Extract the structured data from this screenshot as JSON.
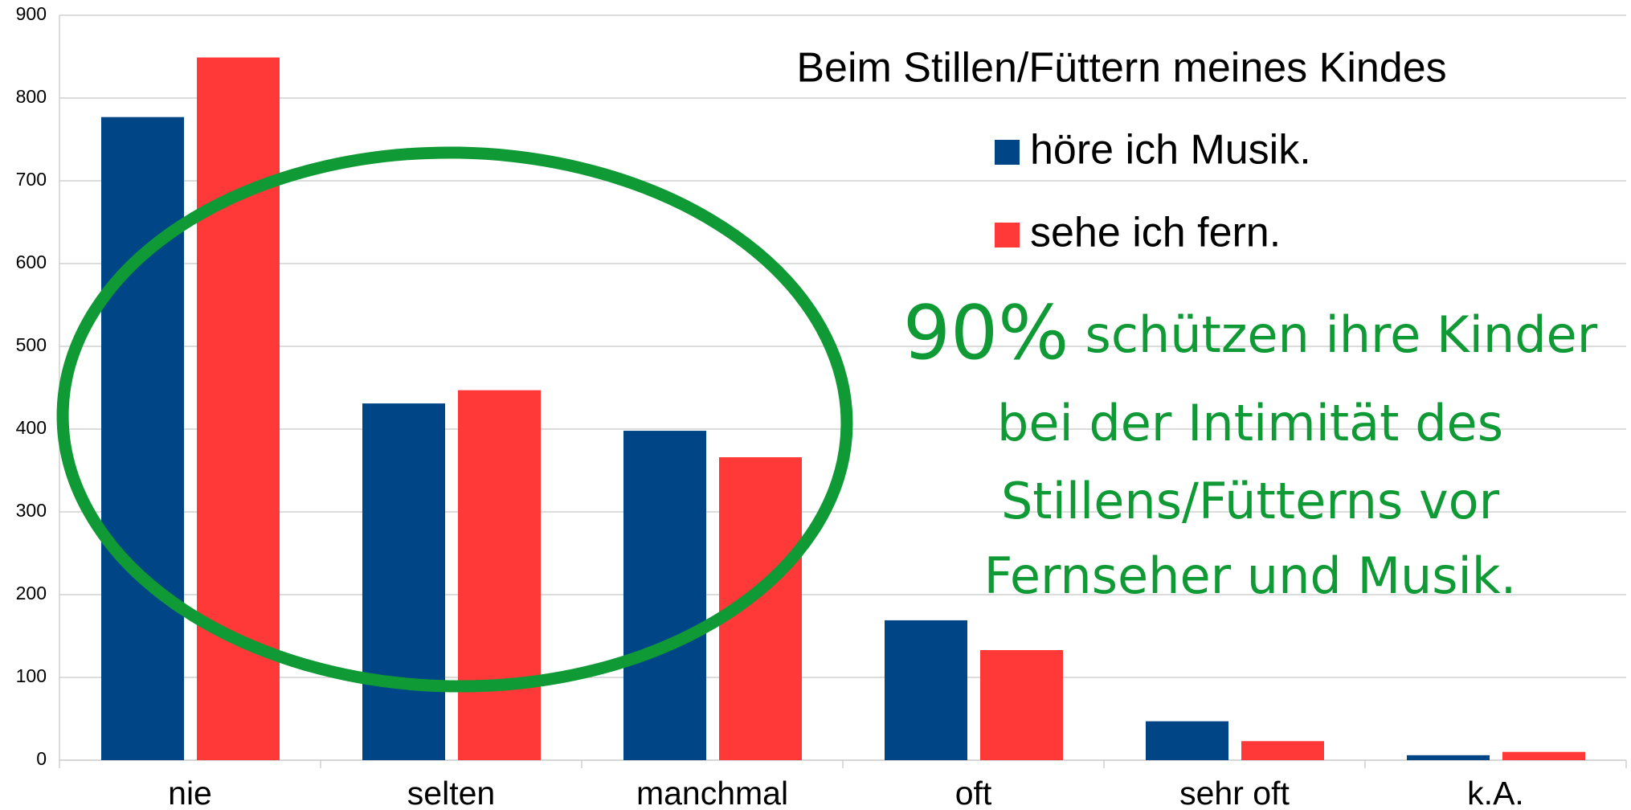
{
  "chart_data": {
    "type": "bar",
    "title": "Beim Stillen/Füttern meines Kindes",
    "categories": [
      "nie",
      "selten",
      "manchmal",
      "oft",
      "sehr oft",
      "k.A."
    ],
    "series": [
      {
        "name": "höre ich Musik.",
        "color": "#004586",
        "values": [
          777,
          431,
          398,
          169,
          47,
          6
        ]
      },
      {
        "name": "sehe ich fern.",
        "color": "#ff3838",
        "values": [
          849,
          447,
          366,
          133,
          23,
          10
        ]
      }
    ],
    "ylim": [
      0,
      900
    ],
    "yticks": [
      0,
      100,
      200,
      300,
      400,
      500,
      600,
      700,
      800,
      900
    ],
    "grid": true,
    "annotation": {
      "highlight": "90%",
      "lines": [
        "schützen ihre Kinder",
        "bei der Intimität des",
        "Stillens/Fütterns vor",
        "Fernseher und Musik."
      ],
      "color": "#0f9a35"
    }
  }
}
